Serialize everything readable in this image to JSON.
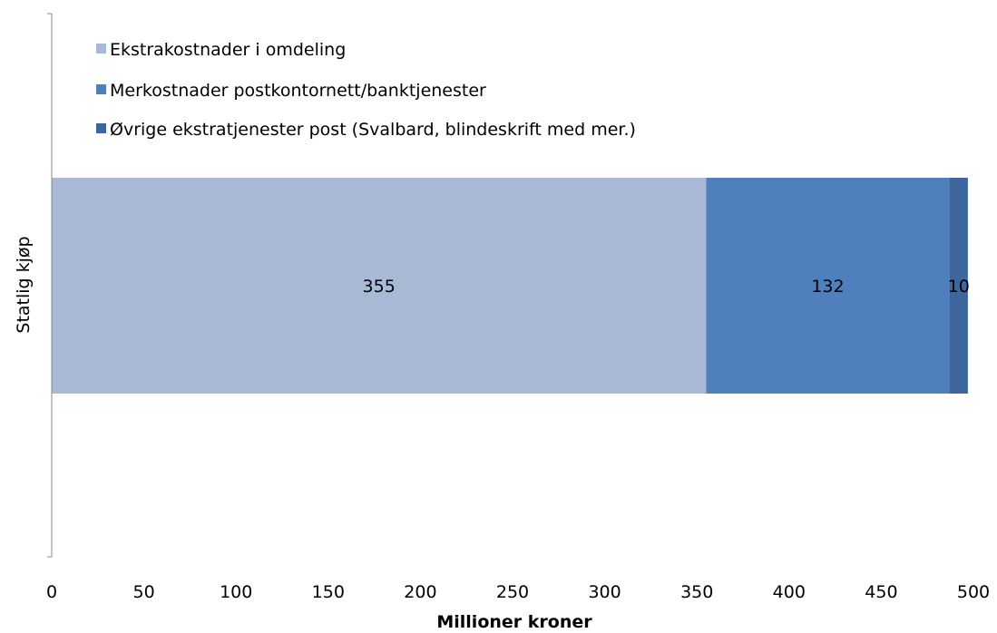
{
  "chart_data": {
    "type": "bar",
    "orientation": "horizontal",
    "stacked": true,
    "categories": [
      "Statlig kjøp"
    ],
    "series": [
      {
        "name": "Ekstrakostnader i omdeling",
        "values": [
          355
        ],
        "color": "#A8B9D6"
      },
      {
        "name": "Merkostnader postkontornett/banktjenester",
        "values": [
          132
        ],
        "color": "#4F80BD"
      },
      {
        "name": "Øvrige ekstratjenester post (Svalbard, blindeskrift med mer.)",
        "values": [
          10
        ],
        "color": "#3E669C"
      }
    ],
    "data_labels": [
      "355",
      "132",
      "10"
    ],
    "xlabel": "Millioner kroner",
    "ylabel": "Statlig kjøp",
    "xlim": [
      0,
      500
    ],
    "xticks": [
      "0",
      "50",
      "100",
      "150",
      "200",
      "250",
      "300",
      "350",
      "400",
      "450",
      "500"
    ],
    "grid": false,
    "legend_position": "top-left"
  }
}
